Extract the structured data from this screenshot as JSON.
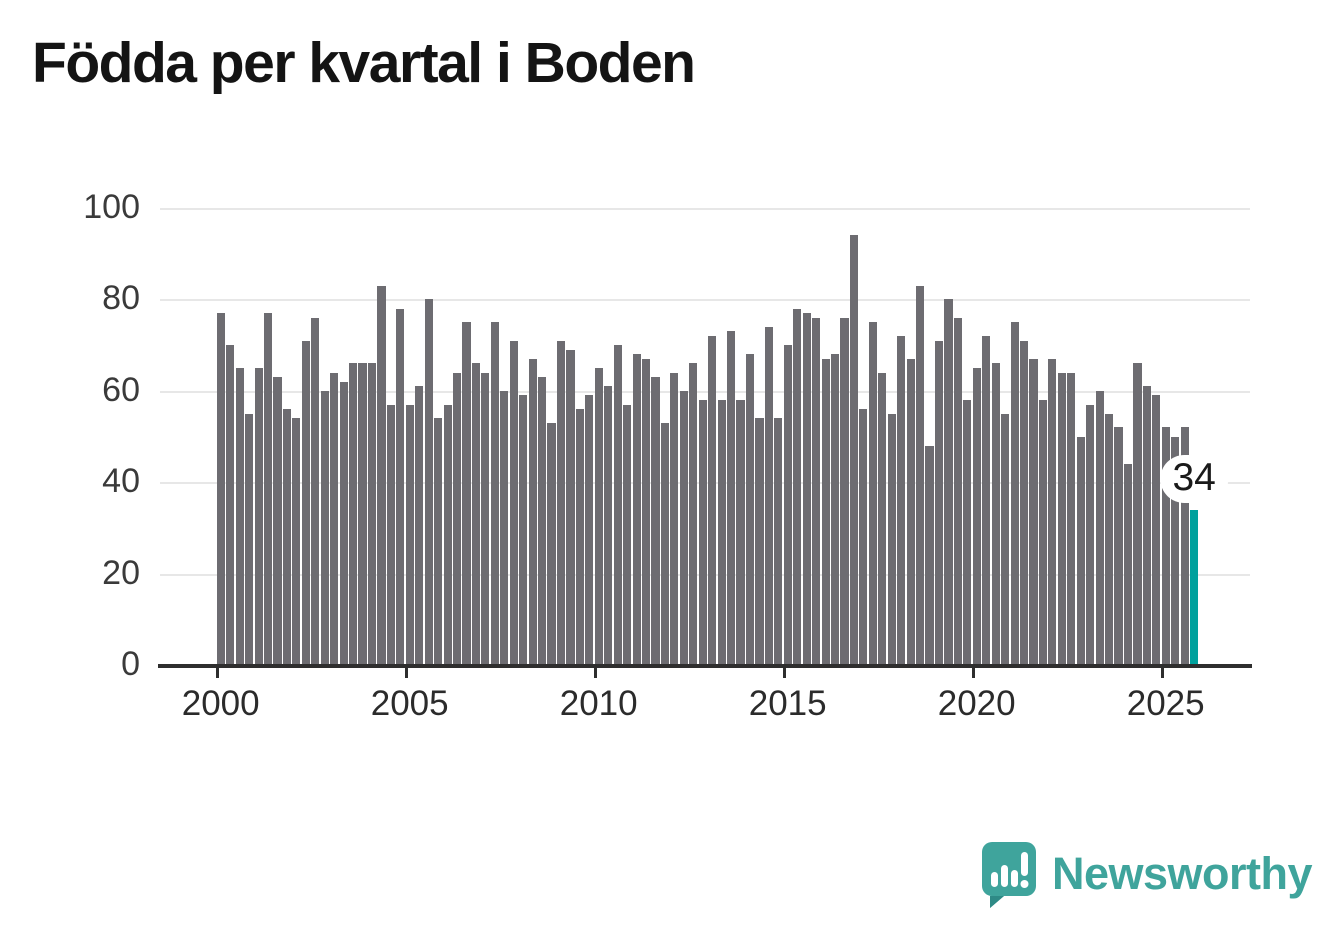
{
  "title": "Födda per kvartal i Boden",
  "chart_data": {
    "type": "bar",
    "title": "Födda per kvartal i Boden",
    "start_year": 2000,
    "quarters_per_year": 4,
    "values": [
      77,
      70,
      65,
      55,
      65,
      77,
      63,
      56,
      54,
      71,
      76,
      60,
      64,
      62,
      66,
      66,
      66,
      83,
      57,
      78,
      57,
      61,
      80,
      54,
      57,
      64,
      75,
      66,
      64,
      75,
      60,
      71,
      59,
      67,
      63,
      53,
      71,
      69,
      56,
      59,
      65,
      61,
      70,
      57,
      68,
      67,
      63,
      53,
      64,
      60,
      66,
      58,
      72,
      58,
      73,
      58,
      68,
      54,
      74,
      54,
      70,
      78,
      77,
      76,
      67,
      68,
      76,
      94,
      56,
      75,
      64,
      55,
      72,
      67,
      83,
      48,
      71,
      80,
      76,
      58,
      65,
      72,
      66,
      55,
      75,
      71,
      67,
      58,
      67,
      64,
      64,
      50,
      57,
      60,
      55,
      52,
      44,
      66,
      61,
      59,
      52,
      50,
      52,
      34
    ],
    "x_tick_labels": [
      "2000",
      "2005",
      "2010",
      "2015",
      "2020",
      "2025"
    ],
    "y_tick_labels": [
      "0",
      "20",
      "40",
      "60",
      "80",
      "100"
    ],
    "y_ticks": [
      0,
      20,
      40,
      60,
      80,
      100
    ],
    "ylim": [
      0,
      100
    ],
    "grid": true,
    "bar_color": "#6d6c71",
    "highlight_color": "#00a19d",
    "highlight_last": true,
    "last_value_label": "34"
  },
  "annotation": {
    "label": "34"
  },
  "footer": {
    "brand": "Newsworthy",
    "logo_color": "#3fa49c"
  }
}
